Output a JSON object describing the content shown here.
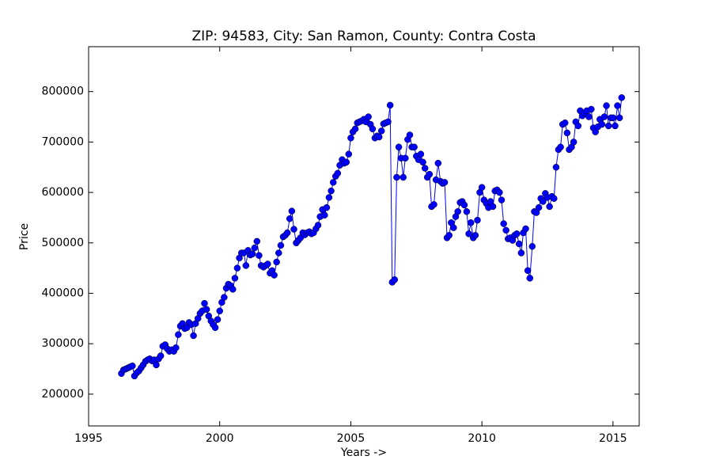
{
  "chart_data": {
    "type": "line",
    "title": "ZIP: 94583, City: San Ramon, County: Contra Costa",
    "x_label": "Years ->",
    "y_label": "Price",
    "color": "#0000ff",
    "xlim": [
      1995,
      2016
    ],
    "xticks": [
      1995,
      2000,
      2005,
      2010,
      2015
    ],
    "ylim": [
      137000,
      889000
    ],
    "yticks": [
      200000,
      300000,
      400000,
      500000,
      600000,
      700000,
      800000
    ],
    "grid": false,
    "x": [
      1996.25,
      1996.33,
      1996.42,
      1996.5,
      1996.58,
      1996.67,
      1996.75,
      1996.83,
      1996.92,
      1997,
      1997.08,
      1997.17,
      1997.25,
      1997.33,
      1997.42,
      1997.5,
      1997.58,
      1997.67,
      1997.75,
      1997.83,
      1997.92,
      1998,
      1998.08,
      1998.17,
      1998.25,
      1998.33,
      1998.42,
      1998.5,
      1998.58,
      1998.67,
      1998.75,
      1998.83,
      1998.92,
      1999,
      1999.08,
      1999.17,
      1999.25,
      1999.33,
      1999.42,
      1999.5,
      1999.58,
      1999.67,
      1999.75,
      1999.83,
      1999.92,
      2000,
      2000.08,
      2000.17,
      2000.25,
      2000.33,
      2000.42,
      2000.5,
      2000.58,
      2000.67,
      2000.75,
      2000.83,
      2000.92,
      2001,
      2001.08,
      2001.17,
      2001.25,
      2001.33,
      2001.42,
      2001.5,
      2001.58,
      2001.67,
      2001.75,
      2001.83,
      2001.92,
      2002,
      2002.08,
      2002.17,
      2002.25,
      2002.33,
      2002.42,
      2002.5,
      2002.58,
      2002.67,
      2002.75,
      2002.83,
      2002.92,
      2003,
      2003.08,
      2003.17,
      2003.25,
      2003.33,
      2003.42,
      2003.5,
      2003.58,
      2003.67,
      2003.75,
      2003.83,
      2003.92,
      2004,
      2004.08,
      2004.17,
      2004.25,
      2004.33,
      2004.42,
      2004.5,
      2004.58,
      2004.67,
      2004.75,
      2004.83,
      2004.92,
      2005,
      2005.08,
      2005.17,
      2005.25,
      2005.33,
      2005.42,
      2005.5,
      2005.58,
      2005.67,
      2005.75,
      2005.83,
      2005.92,
      2006,
      2006.08,
      2006.17,
      2006.25,
      2006.33,
      2006.42,
      2006.5,
      2006.58,
      2006.67,
      2006.75,
      2006.83,
      2006.92,
      2007,
      2007.08,
      2007.17,
      2007.25,
      2007.33,
      2007.42,
      2007.5,
      2007.58,
      2007.67,
      2007.75,
      2007.83,
      2007.92,
      2008,
      2008.08,
      2008.17,
      2008.25,
      2008.33,
      2008.42,
      2008.5,
      2008.58,
      2008.67,
      2008.75,
      2008.83,
      2008.92,
      2009,
      2009.08,
      2009.17,
      2009.25,
      2009.33,
      2009.42,
      2009.5,
      2009.58,
      2009.67,
      2009.75,
      2009.83,
      2009.92,
      2010,
      2010.08,
      2010.17,
      2010.25,
      2010.33,
      2010.42,
      2010.5,
      2010.58,
      2010.67,
      2010.75,
      2010.83,
      2010.92,
      2011,
      2011.08,
      2011.17,
      2011.25,
      2011.33,
      2011.42,
      2011.5,
      2011.58,
      2011.67,
      2011.75,
      2011.83,
      2011.92,
      2012,
      2012.08,
      2012.17,
      2012.25,
      2012.33,
      2012.42,
      2012.5,
      2012.58,
      2012.67,
      2012.75,
      2012.83,
      2012.92,
      2013,
      2013.08,
      2013.17,
      2013.25,
      2013.33,
      2013.42,
      2013.5,
      2013.58,
      2013.67,
      2013.75,
      2013.83,
      2013.92,
      2014,
      2014.08,
      2014.17,
      2014.25,
      2014.33,
      2014.42,
      2014.5,
      2014.58,
      2014.67,
      2014.75,
      2014.83,
      2014.92,
      2015,
      2015.08,
      2015.17,
      2015.25,
      2015.33
    ],
    "values": [
      241000,
      248000,
      250000,
      252000,
      254000,
      256000,
      236000,
      242000,
      246000,
      252000,
      258000,
      265000,
      268000,
      270000,
      266000,
      268000,
      258000,
      270000,
      276000,
      295000,
      298000,
      290000,
      285000,
      288000,
      285000,
      292000,
      318000,
      335000,
      340000,
      330000,
      332000,
      342000,
      338000,
      316000,
      340000,
      350000,
      360000,
      365000,
      380000,
      368000,
      355000,
      345000,
      338000,
      332000,
      348000,
      365000,
      382000,
      392000,
      410000,
      418000,
      415000,
      408000,
      430000,
      450000,
      470000,
      480000,
      480000,
      455000,
      485000,
      476000,
      478000,
      490000,
      503000,
      475000,
      455000,
      452000,
      455000,
      458000,
      440000,
      445000,
      436000,
      462000,
      480000,
      495000,
      512000,
      515000,
      520000,
      548000,
      563000,
      527000,
      500000,
      505000,
      510000,
      520000,
      516000,
      520000,
      522000,
      518000,
      520000,
      528000,
      535000,
      552000,
      566000,
      555000,
      570000,
      590000,
      603000,
      620000,
      632000,
      638000,
      654000,
      665000,
      658000,
      660000,
      676000,
      708000,
      720000,
      726000,
      738000,
      740000,
      742000,
      745000,
      740000,
      750000,
      735000,
      726000,
      708000,
      712000,
      710000,
      722000,
      736000,
      738000,
      740000,
      773000,
      422000,
      427000,
      630000,
      690000,
      668000,
      630000,
      668000,
      705000,
      714000,
      690000,
      690000,
      672000,
      665000,
      676000,
      660000,
      648000,
      630000,
      636000,
      572000,
      576000,
      625000,
      658000,
      622000,
      618000,
      620000,
      510000,
      515000,
      540000,
      530000,
      552000,
      562000,
      580000,
      582000,
      575000,
      562000,
      518000,
      540000,
      510000,
      515000,
      545000,
      600000,
      610000,
      585000,
      578000,
      570000,
      582000,
      572000,
      603000,
      605000,
      600000,
      585000,
      538000,
      525000,
      508000,
      510000,
      505000,
      515000,
      518000,
      498000,
      480000,
      520000,
      528000,
      445000,
      430000,
      493000,
      562000,
      560000,
      570000,
      588000,
      582000,
      598000,
      590000,
      572000,
      592000,
      588000,
      650000,
      685000,
      690000,
      735000,
      738000,
      718000,
      685000,
      690000,
      700000,
      740000,
      732000,
      762000,
      752000,
      758000,
      762000,
      750000,
      765000,
      728000,
      720000,
      730000,
      745000,
      735000,
      750000,
      772000,
      732000,
      748000,
      748000,
      732000,
      772000,
      748000,
      788000
    ]
  }
}
